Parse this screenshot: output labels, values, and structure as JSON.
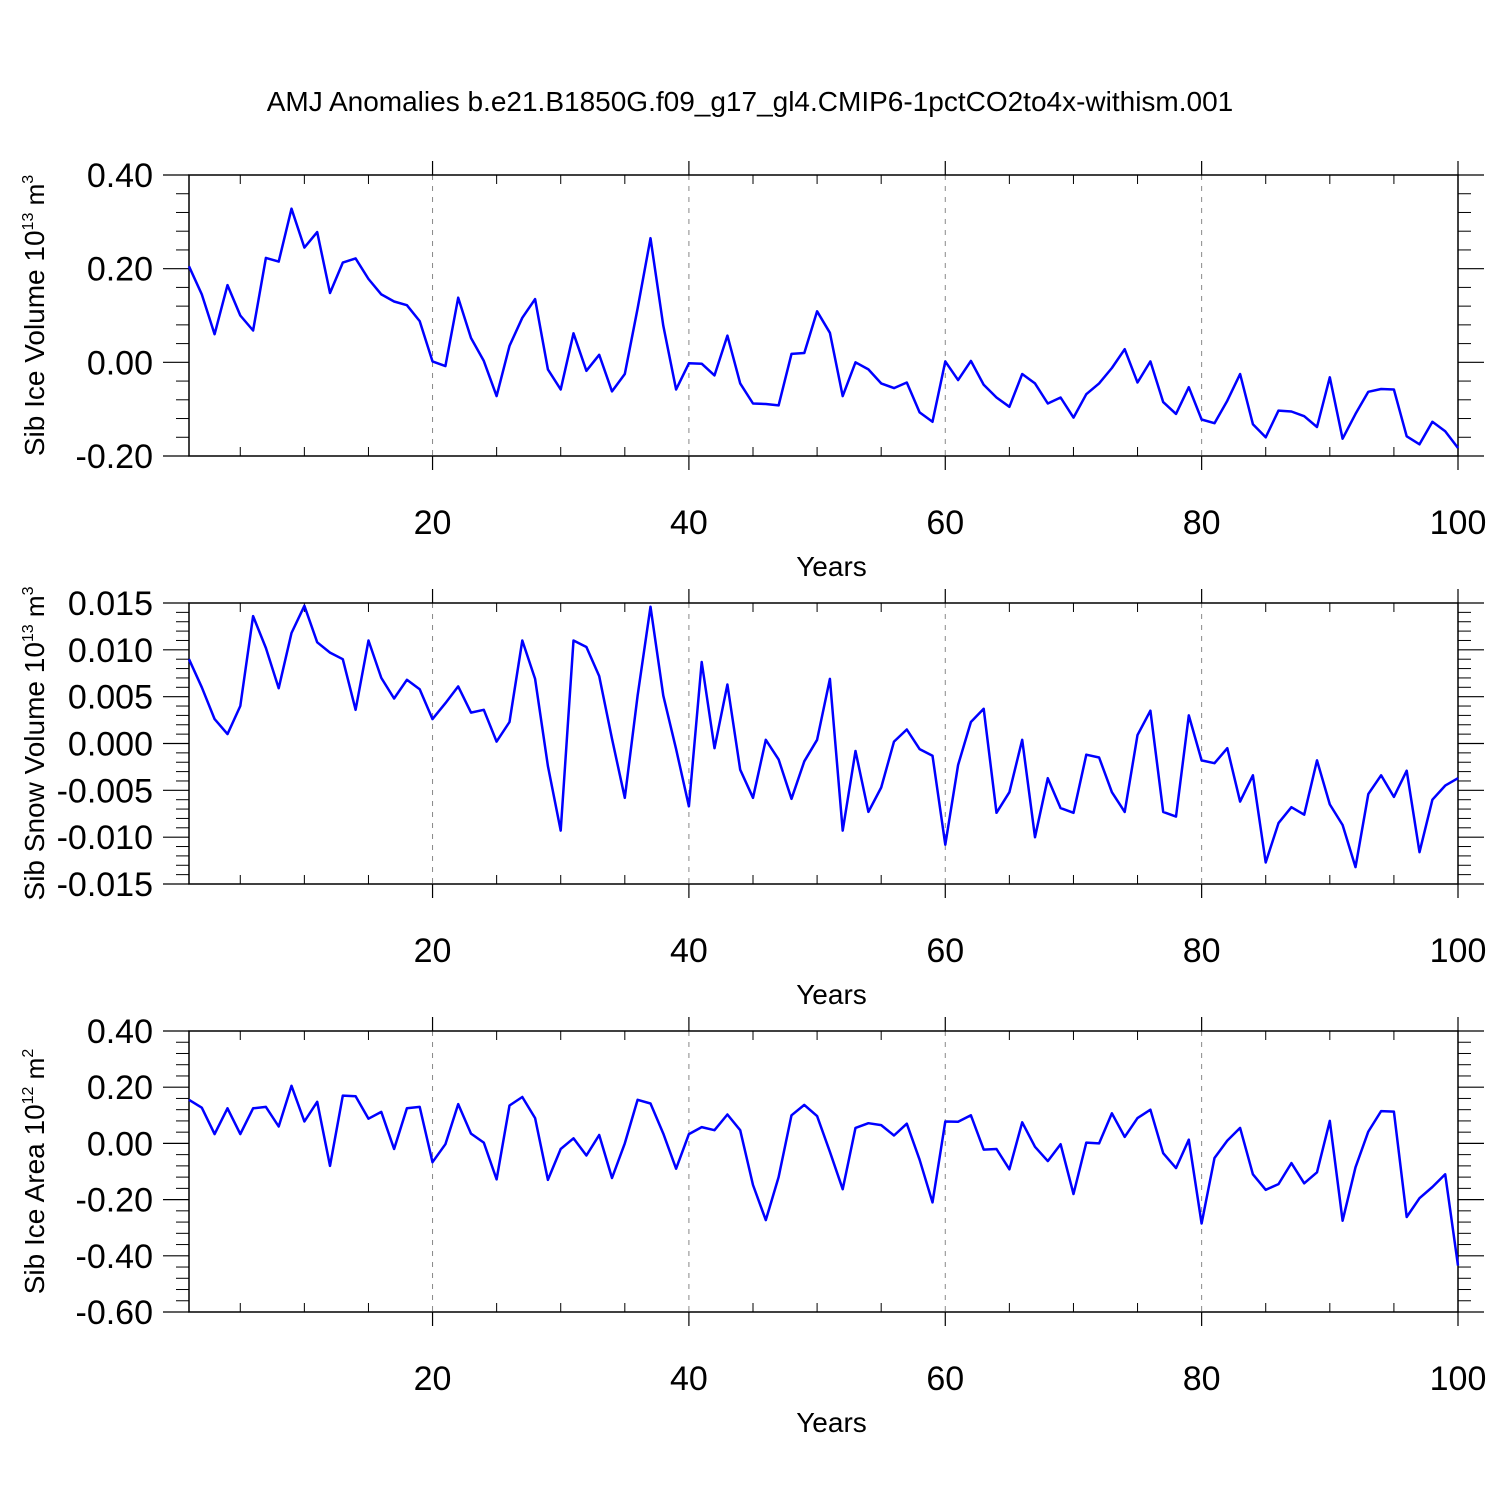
{
  "title": "AMJ Anomalies b.e21.B1850G.f09_g17_gl4.CMIP6-1pctCO2to4x-withism.001",
  "colors": {
    "line": "#0000ff",
    "axis": "#000000",
    "grid": "#888888"
  },
  "chart_data": [
    {
      "type": "line",
      "ylabel": "Sib Ice Volume 10",
      "ylabel_exp": "13",
      "ylabel_unit": "m",
      "ylabel_unit_exp": "3",
      "xlabel": "Years",
      "xlim": [
        1,
        100
      ],
      "ylim": [
        -0.2,
        0.4
      ],
      "xticks": [
        20,
        40,
        60,
        80,
        100
      ],
      "xtick_labels": [
        "20",
        "40",
        "60",
        "80",
        "100"
      ],
      "yticks": [
        -0.2,
        0.0,
        0.2,
        0.4
      ],
      "ytick_labels": [
        "-0.20",
        "0.00",
        "0.20",
        "0.40"
      ],
      "grid_x": [
        20,
        40,
        60,
        80
      ],
      "values": [
        0.205,
        0.145,
        0.06,
        0.165,
        0.1,
        0.068,
        0.223,
        0.215,
        0.328,
        0.245,
        0.278,
        0.148,
        0.213,
        0.222,
        0.178,
        0.145,
        0.13,
        0.122,
        0.088,
        0.002,
        -0.008,
        0.138,
        0.052,
        0.003,
        -0.072,
        0.035,
        0.095,
        0.135,
        -0.015,
        -0.058,
        0.062,
        -0.018,
        0.016,
        -0.062,
        -0.025,
        0.115,
        0.265,
        0.078,
        -0.058,
        -0.002,
        -0.003,
        -0.028,
        0.057,
        -0.045,
        -0.088,
        -0.089,
        -0.092,
        0.018,
        0.02,
        0.109,
        0.063,
        -0.072,
        0.0,
        -0.015,
        -0.045,
        -0.055,
        -0.043,
        -0.107,
        -0.127,
        0.002,
        -0.038,
        0.003,
        -0.048,
        -0.075,
        -0.095,
        -0.025,
        -0.045,
        -0.088,
        -0.075,
        -0.118,
        -0.068,
        -0.045,
        -0.012,
        0.028,
        -0.043,
        0.002,
        -0.085,
        -0.11,
        -0.053,
        -0.122,
        -0.13,
        -0.082,
        -0.025,
        -0.132,
        -0.16,
        -0.103,
        -0.105,
        -0.115,
        -0.138,
        -0.032,
        -0.163,
        -0.11,
        -0.063,
        -0.057,
        -0.058,
        -0.158,
        -0.175,
        -0.127,
        -0.147,
        -0.183
      ]
    },
    {
      "type": "line",
      "ylabel": "Sib Snow Volume 10",
      "ylabel_exp": "13",
      "ylabel_unit": "m",
      "ylabel_unit_exp": "3",
      "xlabel": "Years",
      "xlim": [
        1,
        100
      ],
      "ylim": [
        -0.015,
        0.015
      ],
      "xticks": [
        20,
        40,
        60,
        80,
        100
      ],
      "xtick_labels": [
        "20",
        "40",
        "60",
        "80",
        "100"
      ],
      "yticks": [
        -0.015,
        -0.01,
        -0.005,
        0.0,
        0.005,
        0.01,
        0.015
      ],
      "ytick_labels": [
        "-0.015",
        "-0.010",
        "-0.005",
        "0.000",
        "0.005",
        "0.010",
        "0.015"
      ],
      "grid_x": [
        20,
        40,
        60,
        80
      ],
      "values": [
        0.009,
        0.006,
        0.0026,
        0.001,
        0.004,
        0.0136,
        0.0102,
        0.0059,
        0.0118,
        0.0147,
        0.0108,
        0.0097,
        0.009,
        0.0036,
        0.011,
        0.007,
        0.0048,
        0.0068,
        0.0058,
        0.0026,
        0.0043,
        0.0061,
        0.0033,
        0.0036,
        0.0002,
        0.0023,
        0.011,
        0.0069,
        -0.0024,
        -0.0093,
        0.011,
        0.0103,
        0.0072,
        0.0005,
        -0.0058,
        0.0051,
        0.0146,
        0.0051,
        -0.0006,
        -0.0067,
        0.0087,
        -0.0005,
        0.0063,
        -0.0028,
        -0.0058,
        0.0004,
        -0.0017,
        -0.0059,
        -0.0019,
        0.0004,
        0.0069,
        -0.0093,
        -0.0008,
        -0.0073,
        -0.0047,
        0.0002,
        0.0015,
        -0.0006,
        -0.0013,
        -0.0108,
        -0.0023,
        0.0023,
        0.0037,
        -0.0074,
        -0.0052,
        0.0004,
        -0.01,
        -0.0037,
        -0.0069,
        -0.0074,
        -0.0012,
        -0.0015,
        -0.0052,
        -0.0073,
        0.0009,
        0.0035,
        -0.0073,
        -0.0078,
        0.003,
        -0.0018,
        -0.0021,
        -0.0005,
        -0.0062,
        -0.0034,
        -0.0127,
        -0.0085,
        -0.0068,
        -0.0076,
        -0.0018,
        -0.0065,
        -0.0087,
        -0.0132,
        -0.0054,
        -0.0034,
        -0.0057,
        -0.0029,
        -0.0116,
        -0.006,
        -0.0045,
        -0.0037
      ]
    },
    {
      "type": "line",
      "ylabel": "Sib Ice Area 10",
      "ylabel_exp": "12",
      "ylabel_unit": "m",
      "ylabel_unit_exp": "2",
      "xlabel": "Years",
      "xlim": [
        1,
        100
      ],
      "ylim": [
        -0.6,
        0.4
      ],
      "xticks": [
        20,
        40,
        60,
        80,
        100
      ],
      "xtick_labels": [
        "20",
        "40",
        "60",
        "80",
        "100"
      ],
      "yticks": [
        -0.6,
        -0.4,
        -0.2,
        0.0,
        0.2,
        0.4
      ],
      "ytick_labels": [
        "-0.60",
        "-0.40",
        "-0.20",
        "0.00",
        "0.20",
        "0.40"
      ],
      "grid_x": [
        20,
        40,
        60,
        80
      ],
      "values": [
        0.155,
        0.127,
        0.033,
        0.125,
        0.033,
        0.125,
        0.13,
        0.06,
        0.205,
        0.078,
        0.148,
        -0.08,
        0.17,
        0.168,
        0.088,
        0.112,
        -0.02,
        0.125,
        0.13,
        -0.067,
        -0.003,
        0.14,
        0.035,
        0.003,
        -0.128,
        0.135,
        0.165,
        0.09,
        -0.13,
        -0.02,
        0.018,
        -0.043,
        0.03,
        -0.123,
        0.0,
        0.155,
        0.142,
        0.035,
        -0.09,
        0.033,
        0.058,
        0.047,
        0.103,
        0.047,
        -0.148,
        -0.273,
        -0.12,
        0.1,
        0.137,
        0.097,
        -0.03,
        -0.163,
        0.055,
        0.072,
        0.065,
        0.028,
        0.07,
        -0.058,
        -0.21,
        0.078,
        0.077,
        0.1,
        -0.022,
        -0.02,
        -0.092,
        0.075,
        -0.012,
        -0.063,
        -0.003,
        -0.18,
        0.003,
        0.0,
        0.107,
        0.023,
        0.09,
        0.12,
        -0.035,
        -0.088,
        0.013,
        -0.285,
        -0.052,
        0.01,
        0.055,
        -0.11,
        -0.165,
        -0.145,
        -0.07,
        -0.142,
        -0.103,
        0.08,
        -0.275,
        -0.085,
        0.042,
        0.115,
        0.113,
        -0.262,
        -0.195,
        -0.155,
        -0.11,
        -0.435
      ]
    }
  ]
}
